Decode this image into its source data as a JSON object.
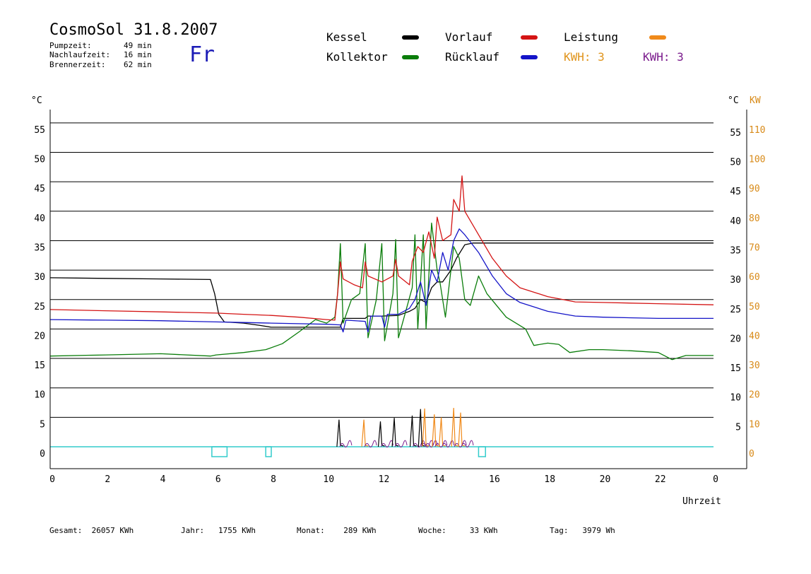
{
  "header": {
    "title": "CosmoSol 31.8.2007",
    "day": "Fr",
    "stats": [
      {
        "label": "Pumpzeit:",
        "value": "49 min"
      },
      {
        "label": "Nachlaufzeit:",
        "value": "16 min"
      },
      {
        "label": "Brennerzeit:",
        "value": "62 min"
      }
    ]
  },
  "legend": {
    "kessel": "Kessel",
    "kollektor": "Kollektor",
    "vorlauf": "Vorlauf",
    "ruecklauf": "Rücklauf",
    "leistung": "Leistung",
    "kwh_orange": "KWH: 3",
    "kwh_purple": "KWH: 3"
  },
  "colors": {
    "kessel": "#000000",
    "kollektor": "#0a7d0a",
    "vorlauf": "#d41414",
    "ruecklauf": "#1414c8",
    "leistung": "#f08a1a",
    "kwh_orange": "#e0941c",
    "kwh_purple": "#7a1a8c",
    "pump": "#33cccc"
  },
  "footer": {
    "gesamt": "Gesamt:  26057 KWh",
    "jahr": "Jahr:   1755 KWh",
    "monat": "Monat:    289 KWh",
    "woche": "Woche:     33 KWh",
    "tag": "Tag:   3979 Wh"
  },
  "chart_data": {
    "type": "line",
    "xlabel": "Uhrzeit",
    "ylabel_left": "°C",
    "ylabel_right": "°C",
    "ylabel_right2": "KW",
    "x_ticks": [
      "0",
      "2",
      "4",
      "6",
      "8",
      "10",
      "12",
      "14",
      "16",
      "18",
      "20",
      "22",
      "0"
    ],
    "y_ticks_left": [
      "0",
      "5",
      "10",
      "15",
      "20",
      "25",
      "30",
      "35",
      "40",
      "45",
      "50",
      "55"
    ],
    "y_ticks_right": [
      "5",
      "10",
      "15",
      "20",
      "25",
      "30",
      "35",
      "40",
      "45",
      "50",
      "55"
    ],
    "y_ticks_kw": [
      "0",
      "10",
      "20",
      "30",
      "40",
      "50",
      "60",
      "70",
      "80",
      "90",
      "100",
      "110"
    ],
    "xlim": [
      0,
      24
    ],
    "ylim": [
      0,
      55
    ],
    "series": [
      {
        "name": "Kessel",
        "key": "kessel",
        "points": [
          [
            0,
            28.7
          ],
          [
            2,
            28.6
          ],
          [
            4,
            28.5
          ],
          [
            5.8,
            28.4
          ],
          [
            5.95,
            26
          ],
          [
            6.1,
            22.5
          ],
          [
            6.3,
            21.2
          ],
          [
            7,
            21
          ],
          [
            7.6,
            20.6
          ],
          [
            8,
            20.3
          ],
          [
            9,
            20.3
          ],
          [
            10,
            20.3
          ],
          [
            10.5,
            20.3
          ],
          [
            10.6,
            21.8
          ],
          [
            11.4,
            21.8
          ],
          [
            11.5,
            22.2
          ],
          [
            12,
            22.2
          ],
          [
            12.6,
            22.3
          ],
          [
            13,
            23
          ],
          [
            13.2,
            23.5
          ],
          [
            13.4,
            25
          ],
          [
            13.6,
            24.5
          ],
          [
            13.8,
            27
          ],
          [
            14,
            28
          ],
          [
            14.2,
            28
          ],
          [
            14.5,
            30
          ],
          [
            14.7,
            32
          ],
          [
            15,
            34.3
          ],
          [
            15.3,
            34.6
          ],
          [
            17,
            34.6
          ],
          [
            20,
            34.6
          ],
          [
            24,
            34.6
          ]
        ]
      },
      {
        "name": "Kollektor",
        "key": "kollektor",
        "points": [
          [
            0,
            15.4
          ],
          [
            2,
            15.6
          ],
          [
            4,
            15.8
          ],
          [
            5.8,
            15.4
          ],
          [
            6,
            15.6
          ],
          [
            7,
            16
          ],
          [
            7.8,
            16.5
          ],
          [
            8.4,
            17.5
          ],
          [
            9,
            19.5
          ],
          [
            9.6,
            21.6
          ],
          [
            10,
            21
          ],
          [
            10.3,
            22
          ],
          [
            10.4,
            26
          ],
          [
            10.5,
            34.5
          ],
          [
            10.6,
            21
          ],
          [
            10.9,
            25
          ],
          [
            11.2,
            26
          ],
          [
            11.4,
            34.5
          ],
          [
            11.5,
            18.5
          ],
          [
            11.8,
            25
          ],
          [
            12,
            34.5
          ],
          [
            12.1,
            18
          ],
          [
            12.4,
            26
          ],
          [
            12.5,
            35.2
          ],
          [
            12.6,
            18.5
          ],
          [
            13.1,
            27
          ],
          [
            13.2,
            36
          ],
          [
            13.3,
            20
          ],
          [
            13.5,
            36
          ],
          [
            13.6,
            20
          ],
          [
            13.8,
            38
          ],
          [
            14,
            30
          ],
          [
            14.1,
            28
          ],
          [
            14.3,
            22
          ],
          [
            14.6,
            34
          ],
          [
            14.8,
            32
          ],
          [
            15,
            25
          ],
          [
            15.2,
            24
          ],
          [
            15.5,
            29
          ],
          [
            15.8,
            26
          ],
          [
            16.5,
            22
          ],
          [
            17.2,
            20
          ],
          [
            17.5,
            17.2
          ],
          [
            18,
            17.6
          ],
          [
            18.4,
            17.4
          ],
          [
            18.8,
            16
          ],
          [
            19.5,
            16.5
          ],
          [
            20,
            16.5
          ],
          [
            21,
            16.3
          ],
          [
            22,
            16
          ],
          [
            22.5,
            14.8
          ],
          [
            23,
            15.5
          ],
          [
            24,
            15.5
          ]
        ]
      },
      {
        "name": "Vorlauf",
        "key": "vorlauf",
        "points": [
          [
            0,
            23.3
          ],
          [
            2,
            23.1
          ],
          [
            4,
            22.9
          ],
          [
            6,
            22.7
          ],
          [
            7,
            22.5
          ],
          [
            8,
            22.3
          ],
          [
            9,
            22
          ],
          [
            10,
            21.6
          ],
          [
            10.3,
            21.5
          ],
          [
            10.4,
            26
          ],
          [
            10.5,
            31.4
          ],
          [
            10.6,
            28.5
          ],
          [
            11,
            27.5
          ],
          [
            11.3,
            27
          ],
          [
            11.4,
            31.4
          ],
          [
            11.5,
            29
          ],
          [
            12,
            28
          ],
          [
            12.4,
            29
          ],
          [
            12.5,
            31.8
          ],
          [
            12.6,
            29
          ],
          [
            13,
            27.5
          ],
          [
            13.1,
            31.5
          ],
          [
            13.3,
            34
          ],
          [
            13.5,
            33
          ],
          [
            13.7,
            36.5
          ],
          [
            13.9,
            32
          ],
          [
            14,
            39
          ],
          [
            14.2,
            35
          ],
          [
            14.5,
            36
          ],
          [
            14.6,
            42
          ],
          [
            14.8,
            40
          ],
          [
            14.9,
            46
          ],
          [
            15,
            40
          ],
          [
            15.5,
            36
          ],
          [
            16,
            32
          ],
          [
            16.5,
            29
          ],
          [
            17,
            27
          ],
          [
            18,
            25.5
          ],
          [
            19,
            24.6
          ],
          [
            20,
            24.5
          ],
          [
            22,
            24.3
          ],
          [
            24,
            24.1
          ]
        ]
      },
      {
        "name": "Rücklauf",
        "key": "ruecklauf",
        "points": [
          [
            0,
            21.6
          ],
          [
            2,
            21.5
          ],
          [
            4,
            21.4
          ],
          [
            6,
            21.2
          ],
          [
            7,
            21.1
          ],
          [
            8,
            21
          ],
          [
            9,
            20.9
          ],
          [
            10,
            20.8
          ],
          [
            10.5,
            20.7
          ],
          [
            10.6,
            19.5
          ],
          [
            10.7,
            21.5
          ],
          [
            11.4,
            21.3
          ],
          [
            11.5,
            19.5
          ],
          [
            11.6,
            22.2
          ],
          [
            12,
            22.2
          ],
          [
            12.1,
            20.3
          ],
          [
            12.2,
            22.5
          ],
          [
            12.6,
            22.5
          ],
          [
            13,
            23.5
          ],
          [
            13.2,
            25
          ],
          [
            13.4,
            28
          ],
          [
            13.6,
            24
          ],
          [
            13.8,
            30
          ],
          [
            14,
            28
          ],
          [
            14.2,
            33
          ],
          [
            14.4,
            30
          ],
          [
            14.6,
            35
          ],
          [
            14.8,
            37
          ],
          [
            15,
            36
          ],
          [
            15.5,
            33
          ],
          [
            16,
            29
          ],
          [
            16.5,
            26
          ],
          [
            17,
            24.5
          ],
          [
            18,
            23
          ],
          [
            19,
            22.2
          ],
          [
            20,
            22
          ],
          [
            22,
            21.8
          ],
          [
            24,
            21.8
          ]
        ]
      }
    ],
    "power_peaks": [
      {
        "x": 10.45,
        "h": 4.6,
        "key": "kessel"
      },
      {
        "x": 11.35,
        "h": 4.6,
        "key": "leistung"
      },
      {
        "x": 11.95,
        "h": 4.3,
        "key": "kessel"
      },
      {
        "x": 12.45,
        "h": 4.9,
        "key": "kessel"
      },
      {
        "x": 13.1,
        "h": 5.3,
        "key": "kessel"
      },
      {
        "x": 13.4,
        "h": 6.4,
        "key": "kessel"
      },
      {
        "x": 13.55,
        "h": 6.5,
        "key": "leistung"
      },
      {
        "x": 13.9,
        "h": 5.5,
        "key": "leistung"
      },
      {
        "x": 14.15,
        "h": 5.0,
        "key": "leistung"
      },
      {
        "x": 14.6,
        "h": 6.6,
        "key": "leistung"
      },
      {
        "x": 14.85,
        "h": 5.8,
        "key": "leistung"
      }
    ],
    "pump_intervals": [
      [
        5.85,
        6.4
      ],
      [
        7.8,
        8.0
      ],
      [
        15.5,
        15.75
      ]
    ]
  }
}
